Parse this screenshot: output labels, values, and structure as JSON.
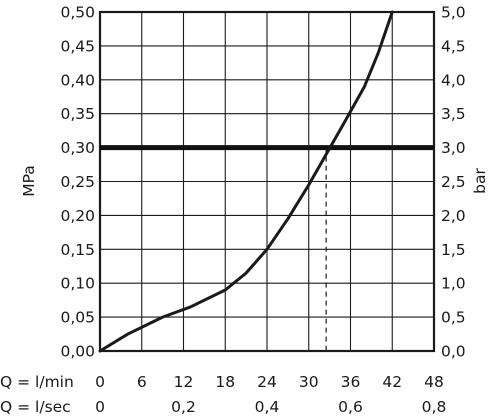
{
  "chart_data": {
    "type": "line",
    "title": "",
    "ylabel_left": "MPa",
    "ylabel_right": "bar",
    "x_label_rows": [
      {
        "prefix": "Q = l/min",
        "ticks": [
          "0",
          "6",
          "12",
          "18",
          "24",
          "30",
          "36",
          "42",
          "48"
        ],
        "tick_values": [
          0,
          6,
          12,
          18,
          24,
          30,
          36,
          42,
          48
        ]
      },
      {
        "prefix": "Q = l/sec",
        "ticks": [
          "0",
          "0,2",
          "0,4",
          "0,6",
          "0,8"
        ],
        "tick_values": [
          0,
          12,
          24,
          36,
          48
        ]
      }
    ],
    "xlim": [
      0,
      48
    ],
    "ylim": [
      0,
      0.5
    ],
    "y_ticks_left": [
      "0,00",
      "0,05",
      "0,10",
      "0,15",
      "0,20",
      "0,25",
      "0,30",
      "0,35",
      "0,40",
      "0,45",
      "0,50"
    ],
    "y_ticks_right": [
      "0,0",
      "0,5",
      "1,0",
      "1,5",
      "2,0",
      "2,5",
      "3,0",
      "3,5",
      "4,0",
      "4,5",
      "5,0"
    ],
    "y_tick_values": [
      0,
      0.05,
      0.1,
      0.15,
      0.2,
      0.25,
      0.3,
      0.35,
      0.4,
      0.45,
      0.5
    ],
    "grid": true,
    "series": [
      {
        "x": [
          0,
          4,
          9,
          13,
          18,
          21,
          24,
          27,
          30,
          32.5,
          35,
          38,
          40,
          42
        ],
        "y": [
          0,
          0.025,
          0.05,
          0.065,
          0.09,
          0.115,
          0.15,
          0.195,
          0.245,
          0.29,
          0.335,
          0.39,
          0.44,
          0.5
        ]
      }
    ],
    "reference_line": {
      "y": 0.3
    },
    "reference_drop": {
      "x": 32.5,
      "y": 0.3
    }
  }
}
